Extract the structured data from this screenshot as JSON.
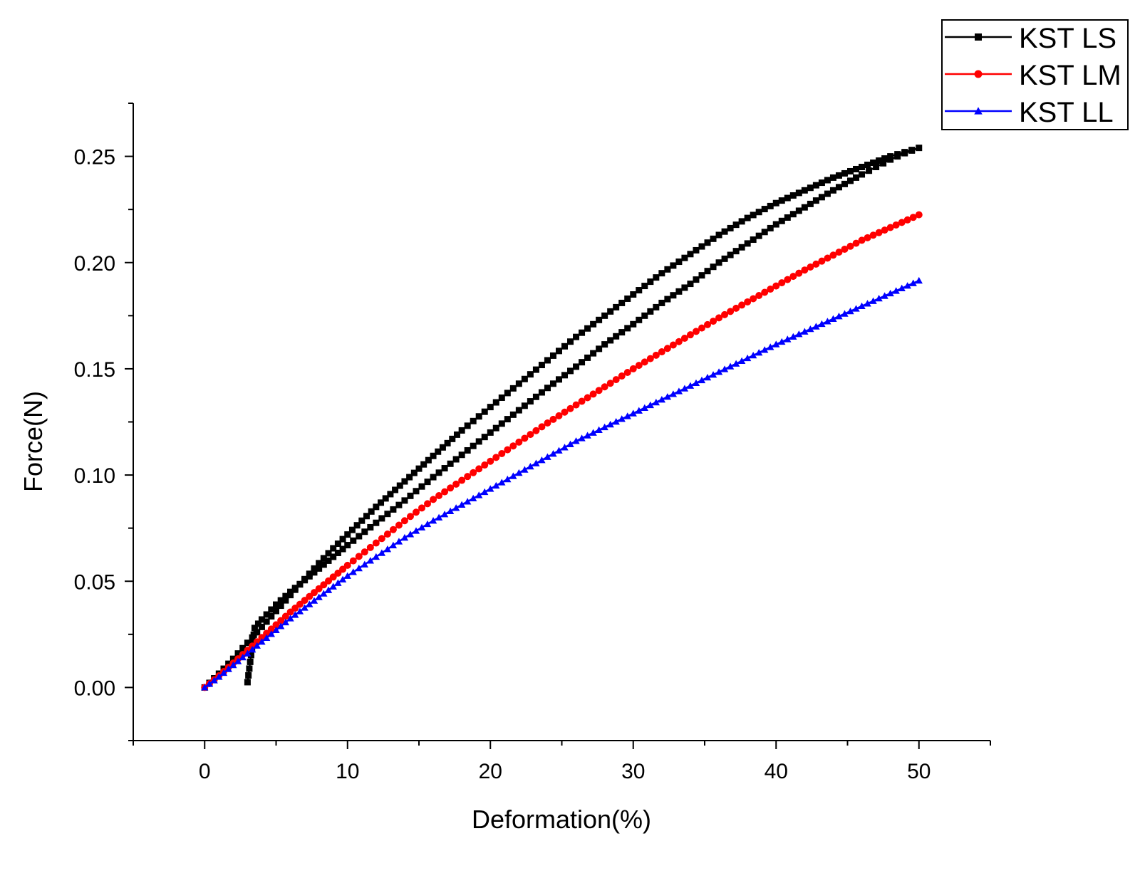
{
  "chart_data": {
    "type": "line",
    "title": "",
    "xlabel": "Deformation(%)",
    "ylabel": "Force(N)",
    "xlim": [
      -5,
      55
    ],
    "ylim": [
      -0.025,
      0.275
    ],
    "x_ticks": [
      "0",
      "10",
      "20",
      "30",
      "40",
      "50"
    ],
    "y_ticks": [
      "0.00",
      "0.05",
      "0.10",
      "0.15",
      "0.20",
      "0.25"
    ],
    "x_tick_values": [
      0,
      10,
      20,
      30,
      40,
      50
    ],
    "y_tick_values": [
      0,
      0.05,
      0.1,
      0.15,
      0.2,
      0.25
    ],
    "grid": false,
    "legend_position": "top-right",
    "series": [
      {
        "name": "KST LS",
        "color": "#000000",
        "marker": "square",
        "x": [
          0,
          1,
          2,
          3,
          4,
          5,
          6,
          7,
          8,
          9,
          10,
          12,
          14,
          16,
          18,
          20,
          22,
          24,
          26,
          28,
          30,
          32,
          34,
          36,
          38,
          40,
          42,
          44,
          46,
          48,
          49,
          50,
          49,
          48,
          47,
          46,
          44,
          42,
          40,
          38,
          36,
          34,
          32,
          30,
          28,
          26,
          24,
          22,
          20,
          18,
          16,
          14,
          12,
          10,
          9,
          8,
          7,
          6,
          5,
          4,
          3.5,
          3
        ],
        "y": [
          0,
          0.0065,
          0.0135,
          0.021,
          0.0285,
          0.036,
          0.0435,
          0.051,
          0.0585,
          0.0655,
          0.072,
          0.085,
          0.097,
          0.109,
          0.121,
          0.132,
          0.143,
          0.154,
          0.165,
          0.175,
          0.185,
          0.195,
          0.204,
          0.213,
          0.221,
          0.228,
          0.234,
          0.24,
          0.245,
          0.25,
          0.252,
          0.254,
          0.2515,
          0.2485,
          0.245,
          0.2415,
          0.234,
          0.226,
          0.218,
          0.209,
          0.2,
          0.19,
          0.181,
          0.171,
          0.1615,
          0.151,
          0.141,
          0.1305,
          0.12,
          0.1095,
          0.099,
          0.088,
          0.0775,
          0.067,
          0.0615,
          0.056,
          0.0505,
          0.045,
          0.039,
          0.032,
          0.028,
          0.0025
        ]
      },
      {
        "name": "KST LM",
        "color": "#ff0000",
        "marker": "circle",
        "x": [
          0,
          1,
          2,
          3,
          4,
          5,
          6,
          7,
          8,
          9,
          10,
          12,
          14,
          16,
          18,
          20,
          22,
          24,
          26,
          28,
          30,
          32,
          34,
          36,
          38,
          40,
          42,
          44,
          46,
          48,
          50
        ],
        "y": [
          0,
          0.0055,
          0.0115,
          0.0175,
          0.0235,
          0.0295,
          0.0355,
          0.041,
          0.0465,
          0.052,
          0.0575,
          0.068,
          0.0785,
          0.0885,
          0.0975,
          0.1065,
          0.1155,
          0.1245,
          0.133,
          0.1415,
          0.15,
          0.158,
          0.166,
          0.174,
          0.1815,
          0.189,
          0.1965,
          0.2035,
          0.2105,
          0.2165,
          0.2225
        ]
      },
      {
        "name": "KST LL",
        "color": "#0000ff",
        "marker": "triangle",
        "x": [
          0,
          1,
          2,
          3,
          4,
          5,
          6,
          7,
          8,
          9,
          10,
          12,
          14,
          16,
          18,
          20,
          22,
          24,
          26,
          28,
          30,
          32,
          34,
          36,
          38,
          40,
          42,
          44,
          46,
          48,
          50
        ],
        "y": [
          0,
          0.005,
          0.0105,
          0.016,
          0.0215,
          0.027,
          0.0325,
          0.0375,
          0.0425,
          0.0475,
          0.0525,
          0.0615,
          0.0705,
          0.0785,
          0.086,
          0.0935,
          0.101,
          0.1085,
          0.116,
          0.1225,
          0.129,
          0.1355,
          0.142,
          0.1485,
          0.155,
          0.1615,
          0.1675,
          0.1735,
          0.1795,
          0.1855,
          0.1915
        ]
      }
    ]
  }
}
